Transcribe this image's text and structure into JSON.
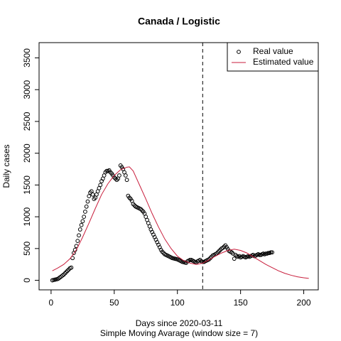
{
  "chart_data": {
    "type": "scatter",
    "title": "Canada / Logistic",
    "x_label": "Days since 2020-03-11",
    "subtitle": "Simple Moving Avarage (window size = 7)",
    "y_label": "Daily cases",
    "xlim": [
      -9.5,
      211.5
    ],
    "ylim": [
      -150,
      3740
    ],
    "xticks": [
      0,
      50,
      100,
      150,
      200
    ],
    "yticks": [
      0,
      500,
      1000,
      1500,
      2000,
      2500,
      3000,
      3500
    ],
    "vline": 120,
    "legend": "topright",
    "series": [
      {
        "name": "Real value",
        "color": "#000000",
        "style": "points",
        "x": [
          1,
          2,
          3,
          4,
          5,
          6,
          7,
          8,
          9,
          10,
          11,
          12,
          13,
          14,
          15,
          16,
          17,
          18,
          19,
          20,
          21,
          22,
          23,
          24,
          25,
          26,
          27,
          28,
          29,
          30,
          31,
          32,
          33,
          34,
          35,
          36,
          37,
          38,
          39,
          40,
          41,
          42,
          43,
          44,
          45,
          46,
          47,
          48,
          49,
          50,
          51,
          52,
          53,
          54,
          55,
          56,
          57,
          58,
          59,
          60,
          61,
          62,
          63,
          64,
          65,
          66,
          67,
          68,
          69,
          70,
          71,
          72,
          73,
          74,
          75,
          76,
          77,
          78,
          79,
          80,
          81,
          82,
          83,
          84,
          85,
          86,
          87,
          88,
          89,
          90,
          91,
          92,
          93,
          94,
          95,
          96,
          97,
          98,
          99,
          100,
          101,
          102,
          103,
          104,
          105,
          106,
          107,
          108,
          109,
          110,
          111,
          112,
          113,
          114,
          115,
          116,
          117,
          118,
          119,
          120,
          121,
          122,
          123,
          124,
          125,
          126,
          127,
          128,
          129,
          130,
          131,
          132,
          133,
          134,
          135,
          136,
          137,
          138,
          139,
          140,
          141,
          142,
          143,
          144,
          145,
          146,
          147,
          148,
          149,
          150,
          151,
          152,
          153,
          154,
          155,
          156,
          157,
          158,
          159,
          160,
          161,
          162,
          163,
          164,
          165,
          166,
          167,
          168,
          169,
          170,
          171,
          172,
          173,
          174,
          175
        ],
        "values": [
          0,
          5,
          10,
          15,
          20,
          30,
          45,
          60,
          75,
          90,
          110,
          130,
          150,
          170,
          190,
          200,
          350,
          430,
          480,
          540,
          620,
          707,
          800,
          870,
          930,
          1000,
          1080,
          1160,
          1240,
          1324,
          1380,
          1400,
          1350,
          1280,
          1300,
          1350,
          1400,
          1450,
          1500,
          1560,
          1600,
          1650,
          1700,
          1720,
          1720,
          1730,
          1700,
          1680,
          1650,
          1620,
          1600,
          1580,
          1600,
          1650,
          1807,
          1780,
          1750,
          1700,
          1650,
          1580,
          1330,
          1300,
          1280,
          1250,
          1200,
          1180,
          1160,
          1150,
          1140,
          1130,
          1120,
          1100,
          1080,
          1050,
          1000,
          950,
          900,
          850,
          800,
          760,
          720,
          680,
          640,
          600,
          560,
          520,
          480,
          450,
          430,
          410,
          400,
          390,
          380,
          370,
          360,
          350,
          345,
          340,
          335,
          330,
          320,
          310,
          300,
          290,
          285,
          280,
          275,
          300,
          310,
          320,
          320,
          310,
          300,
          290,
          280,
          300,
          310,
          320,
          300,
          290,
          290,
          300,
          310,
          320,
          330,
          350,
          370,
          390,
          400,
          410,
          420,
          440,
          460,
          480,
          500,
          510,
          530,
          550,
          520,
          490,
          460,
          450,
          440,
          420,
          340,
          400,
          380,
          370,
          380,
          360,
          370,
          380,
          370,
          360,
          370,
          380,
          370,
          380,
          390,
          400,
          380,
          390,
          400,
          410,
          400,
          400,
          410,
          420,
          410,
          420,
          420,
          430,
          430,
          440,
          440
        ]
      },
      {
        "name": "Estimated value",
        "color": "#c81e3c",
        "style": "line",
        "x": [
          1,
          5,
          10,
          15,
          20,
          25,
          30,
          35,
          40,
          45,
          50,
          55,
          60,
          62,
          65,
          70,
          75,
          80,
          85,
          90,
          95,
          100,
          105,
          110,
          115,
          120,
          125,
          130,
          135,
          140,
          145,
          150,
          155,
          160,
          165,
          170,
          175,
          180,
          185,
          190,
          195,
          200,
          204
        ],
        "values": [
          150,
          190,
          250,
          340,
          480,
          680,
          900,
          1130,
          1350,
          1520,
          1650,
          1740,
          1780,
          1785,
          1720,
          1500,
          1280,
          1050,
          840,
          650,
          500,
          380,
          310,
          270,
          250,
          270,
          320,
          380,
          430,
          470,
          490,
          470,
          430,
          370,
          310,
          250,
          200,
          150,
          110,
          80,
          55,
          40,
          30
        ]
      }
    ]
  }
}
